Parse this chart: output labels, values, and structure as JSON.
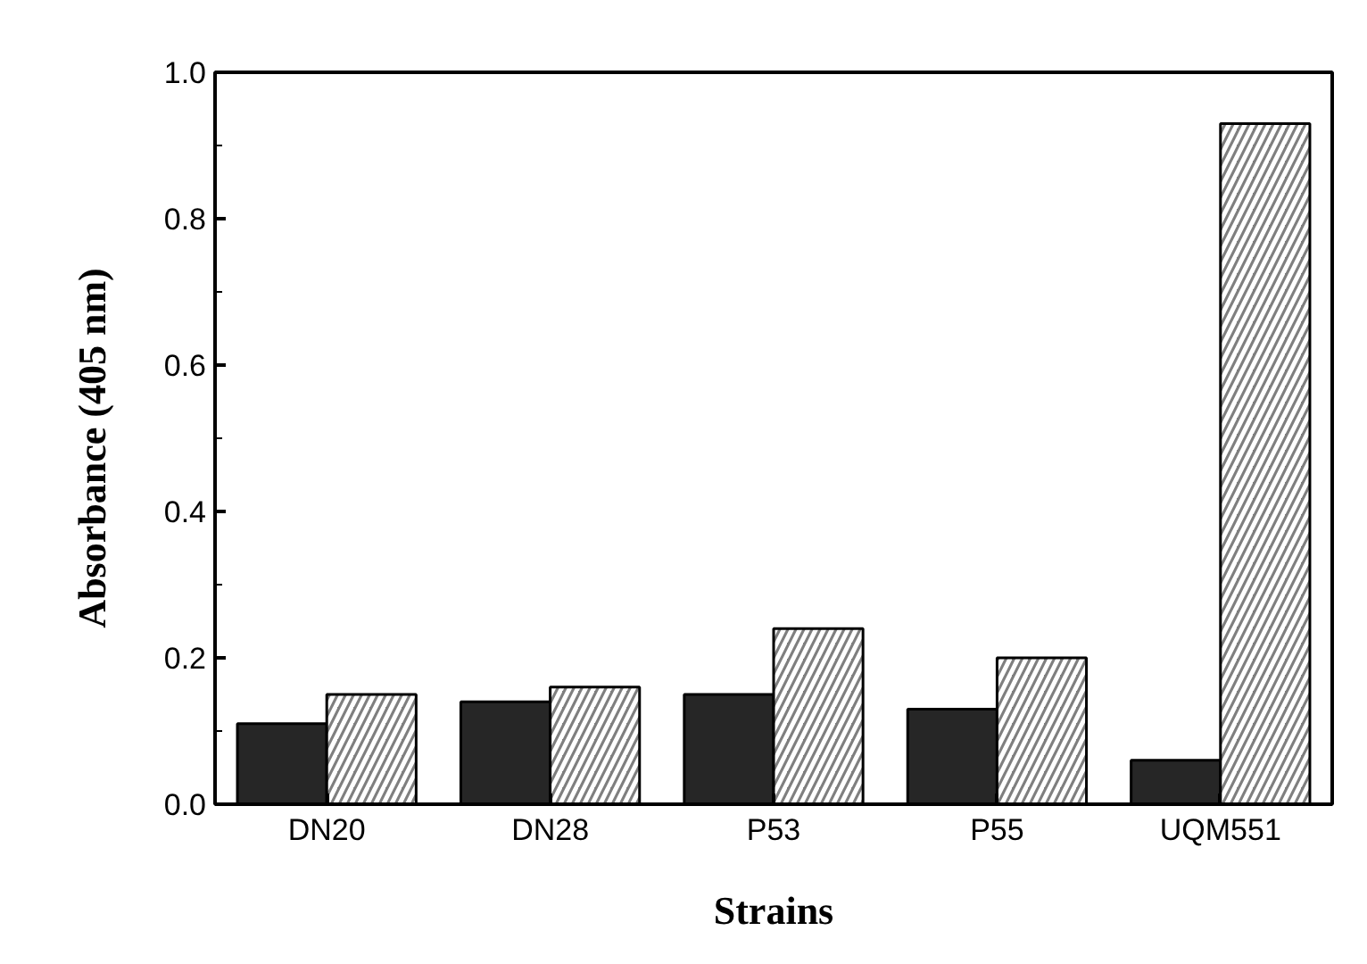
{
  "chart_data": {
    "type": "bar",
    "xlabel": "Strains",
    "ylabel": "Absorbance  (405  nm)",
    "categories": [
      "DN20",
      "DN28",
      "P53",
      "P55",
      "UQM551"
    ],
    "series": [
      {
        "color": "#262626",
        "values": [
          0.11,
          0.14,
          0.15,
          0.13,
          0.06
        ]
      },
      {
        "color": "#7f7f7f",
        "values": [
          0.15,
          0.16,
          0.24,
          0.2,
          0.93
        ]
      }
    ],
    "ylim": [
      0,
      1
    ],
    "yticks": [
      {
        "value": 0,
        "label": "0.0"
      },
      {
        "value": 0.2,
        "label": "0.2"
      },
      {
        "value": 0.4,
        "label": "0.4"
      },
      {
        "value": 0.6,
        "label": "0.6"
      },
      {
        "value": 0.8,
        "label": "0.8"
      },
      {
        "value": 1,
        "label": "1.0"
      }
    ],
    "grid": false
  }
}
